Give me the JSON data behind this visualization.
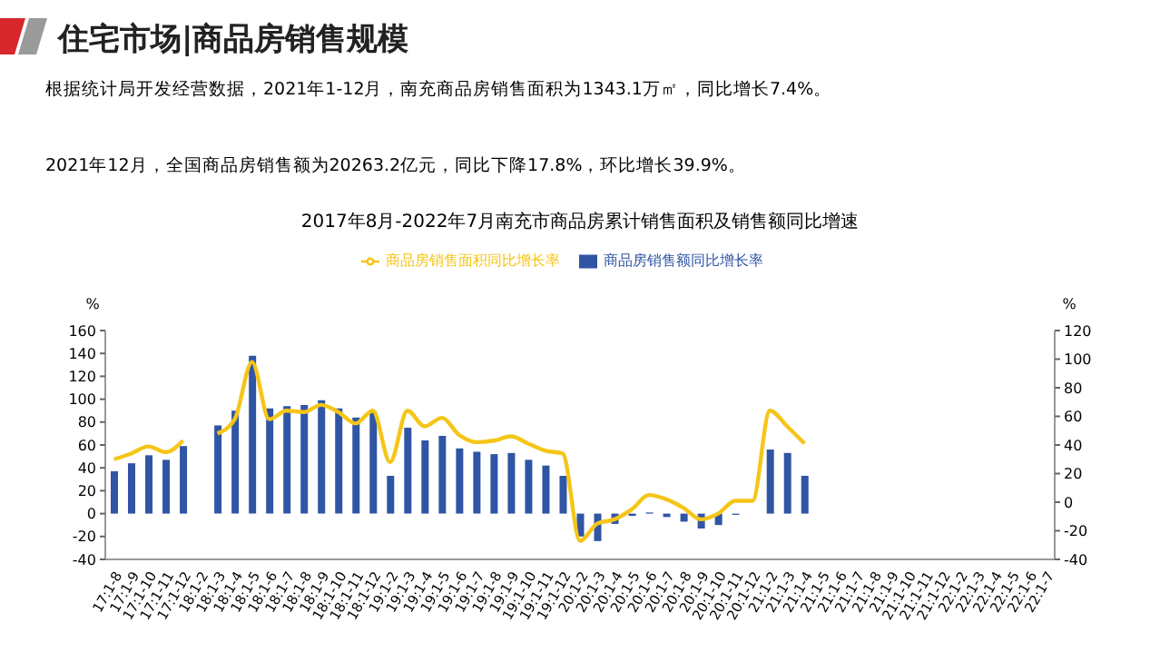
{
  "chart_data": {
    "type": "bar",
    "title": "2017年8月-2022年7月南充市商品房累计销售面积及销售额同比增速",
    "annotations": [
      "住宅市场|商品房销售规模",
      "根据统计局开发经营数据，2021年1-12月，南充商品房销售面积为1343.1万㎡，同比增长7.4%。",
      "2021年12月，全国商品房销售额为20263.2亿元，同比下降17.8%，环比增长39.9%。"
    ],
    "ylabel": "%",
    "y2label": "%",
    "categories": [
      "17:1-8",
      "17:1-9",
      "17:1-10",
      "17:1-11",
      "17:1-12",
      "18:1-2",
      "18:1-3",
      "18:1-4",
      "18:1-5",
      "18:1-6",
      "18:1-7",
      "18:1-8",
      "18:1-9",
      "18:1-10",
      "18:1-11",
      "18:1-12",
      "19:1-2",
      "19:1-3",
      "19:1-4",
      "19:1-5",
      "19:1-6",
      "19:1-7",
      "19:1-8",
      "19:1-9",
      "19:1-10",
      "19:1-11",
      "19:1-12",
      "20:1-2",
      "20:1-3",
      "20:1-4",
      "20:1-5",
      "20:1-6",
      "20:1-7",
      "20:1-8",
      "20:1-9",
      "20:1-10",
      "20:1-11",
      "20:1-12",
      "21:1-2",
      "21:1-3",
      "21:1-4",
      "21:1-5",
      "21:1-6",
      "21:1-7",
      "21:1-8",
      "21:1-9",
      "21:1-10",
      "21:1-11",
      "21:1-12",
      "22:1-2",
      "22:1-3",
      "22:1-4",
      "22:1-5",
      "22:1-6",
      "22:1-7"
    ],
    "series": [
      {
        "name": "商品房销售额同比增长率",
        "color": "#2f55a4",
        "values": [
          37,
          44,
          51,
          47,
          59,
          null,
          77,
          90,
          138,
          92,
          94,
          95,
          99,
          92,
          84,
          89,
          33,
          75,
          64,
          68,
          57,
          54,
          52,
          53,
          47,
          42,
          33,
          -20,
          -24,
          -9,
          -2,
          1,
          -3,
          -7,
          -13,
          -10,
          -1,
          0,
          56,
          53,
          33,
          null,
          null,
          null,
          null,
          null,
          null,
          null,
          null,
          null,
          null,
          null,
          null,
          null,
          null
        ]
      },
      {
        "name": "商品房销售面积同比增长率",
        "type": "line",
        "axis": "y2",
        "color": "#f5c518",
        "values": [
          30,
          34,
          39,
          35,
          43,
          null,
          48,
          58,
          98,
          58,
          64,
          63,
          68,
          63,
          55,
          64,
          28,
          64,
          53,
          59,
          47,
          42,
          43,
          46,
          41,
          36,
          34,
          -27,
          -15,
          -12,
          -5,
          5,
          2,
          -4,
          -12,
          -8,
          1,
          1,
          64,
          53,
          41,
          null,
          null,
          null,
          null,
          null,
          null,
          null,
          null,
          null,
          null,
          null,
          null,
          null,
          null
        ]
      }
    ],
    "ylim": [
      -40,
      160
    ],
    "yticks": [
      -40,
      -20,
      0,
      20,
      40,
      60,
      80,
      100,
      120,
      140,
      160
    ],
    "y2lim": [
      -40,
      120
    ],
    "y2ticks": [
      -40,
      -20,
      0,
      20,
      40,
      60,
      80,
      100,
      120
    ],
    "legend": "top",
    "marker": "none",
    "line_style": "solid"
  }
}
